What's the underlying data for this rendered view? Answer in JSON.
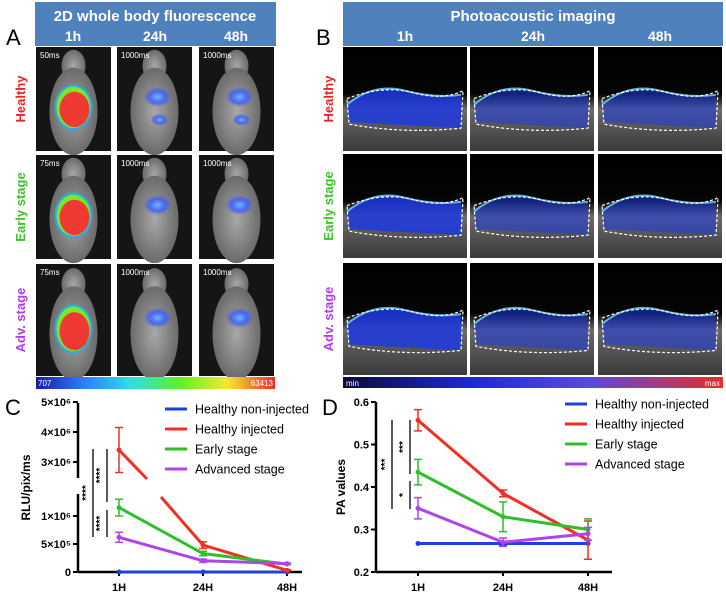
{
  "panels": {
    "A": "A",
    "B": "B",
    "C": "C",
    "D": "D"
  },
  "panelA": {
    "title": "2D whole body fluorescence",
    "timepoints": [
      "1h",
      "24h",
      "48h"
    ],
    "rows": [
      {
        "label": "Healthy",
        "color": "#e8252a",
        "exposures": [
          "50ms",
          "1000ms",
          "1000ms"
        ]
      },
      {
        "label": "Early stage",
        "color": "#3cc22a",
        "exposures": [
          "75ms",
          "1000ms",
          "1000ms"
        ]
      },
      {
        "label": "Adv. stage",
        "color": "#b23ce6",
        "exposures": [
          "75ms",
          "1000ms",
          "1000ms"
        ]
      }
    ],
    "colorbar": {
      "min": "707",
      "max": "63413"
    }
  },
  "panelB": {
    "title": "Photoacoustic imaging",
    "timepoints": [
      "1h",
      "24h",
      "48h"
    ],
    "rows": [
      {
        "label": "Healthy",
        "color": "#e8252a"
      },
      {
        "label": "Early stage",
        "color": "#3cc22a"
      },
      {
        "label": "Adv. stage",
        "color": "#b23ce6"
      }
    ],
    "colorbar": {
      "min": "min",
      "max": "max"
    }
  },
  "header_color": "#4f81bd",
  "chart_data": [
    {
      "type": "line",
      "ylabel": "RLU/pix/ms",
      "categories": [
        "1H",
        "24H",
        "48H"
      ],
      "yticks": [
        "0",
        "5×10⁵",
        "1×10⁶",
        "3×10⁶",
        "4×10⁶",
        "5×10⁶"
      ],
      "axis_break": [
        1350000,
        2500000
      ],
      "ylim": [
        0,
        5000000
      ],
      "legend_position": "top-right",
      "series": [
        {
          "name": "Healthy non-injected",
          "color": "#1f3fe0",
          "values": [
            0,
            0,
            0
          ],
          "errors": [
            0,
            0,
            0
          ]
        },
        {
          "name": "Healthy injected",
          "color": "#ee3124",
          "values": [
            3400000,
            480000,
            30000
          ],
          "errors": [
            750000,
            60000,
            10000
          ]
        },
        {
          "name": "Early stage",
          "color": "#2fbf2a",
          "values": [
            1150000,
            330000,
            140000
          ],
          "errors": [
            150000,
            40000,
            10000
          ]
        },
        {
          "name": "Advanced stage",
          "color": "#b044e8",
          "values": [
            620000,
            200000,
            150000
          ],
          "errors": [
            90000,
            30000,
            10000
          ]
        }
      ],
      "significance": [
        "****",
        "****",
        "****"
      ]
    },
    {
      "type": "line",
      "ylabel": "PA values",
      "categories": [
        "1H",
        "24H",
        "48H"
      ],
      "yticks": [
        "0.2",
        "0.3",
        "0.4",
        "0.5",
        "0.6"
      ],
      "ylim": [
        0.2,
        0.6
      ],
      "legend_position": "top-right",
      "series": [
        {
          "name": "Healthy non-injected",
          "color": "#1f3fe0",
          "values": [
            0.267,
            0.267,
            0.267
          ],
          "errors": [
            0,
            0.005,
            0
          ]
        },
        {
          "name": "Healthy injected",
          "color": "#ee3124",
          "values": [
            0.557,
            0.385,
            0.275
          ],
          "errors": [
            0.025,
            0.008,
            0.045
          ]
        },
        {
          "name": "Early stage",
          "color": "#2fbf2a",
          "values": [
            0.435,
            0.33,
            0.3
          ],
          "errors": [
            0.03,
            0.035,
            0.025
          ]
        },
        {
          "name": "Advanced stage",
          "color": "#b044e8",
          "values": [
            0.35,
            0.27,
            0.29
          ],
          "errors": [
            0.025,
            0.01,
            0.015
          ]
        }
      ],
      "significance": [
        "***",
        "***",
        "*"
      ]
    }
  ]
}
